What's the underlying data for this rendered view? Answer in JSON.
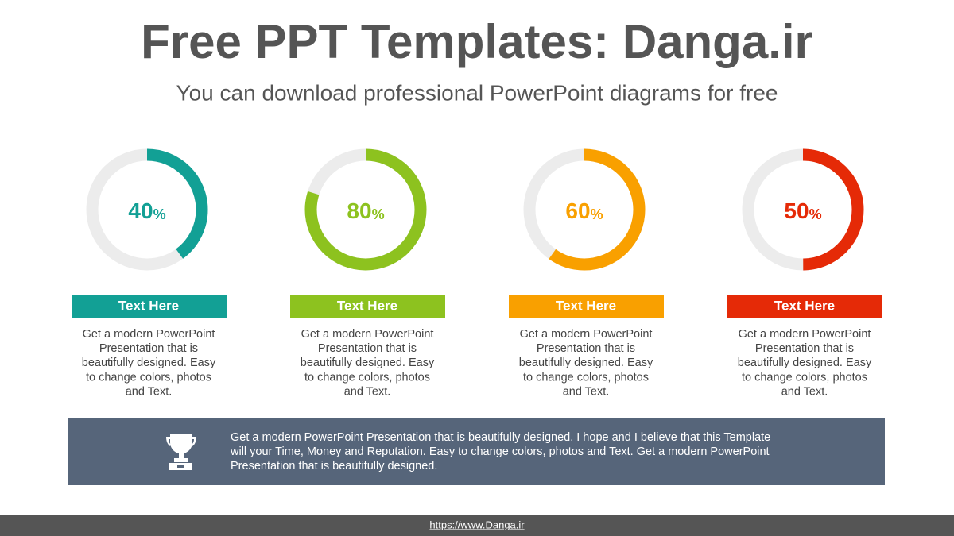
{
  "header": {
    "title": "Free PPT Templates: Danga.ir",
    "subtitle": "You can download professional PowerPoint diagrams for free"
  },
  "cards": [
    {
      "value": 40,
      "unit": "%",
      "color": "#12a095",
      "title": "Text Here",
      "lines": [
        "Get a modern PowerPoint",
        "Presentation that is",
        "beautifully designed. Easy",
        "to change colors, photos",
        "and Text."
      ]
    },
    {
      "value": 80,
      "unit": "%",
      "color": "#8dc21f",
      "title": "Text Here",
      "lines": [
        "Get a modern PowerPoint",
        "Presentation that is",
        "beautifully designed. Easy",
        "to change colors, photos",
        "and Text."
      ]
    },
    {
      "value": 60,
      "unit": "%",
      "color": "#f9a000",
      "title": "Text Here",
      "lines": [
        "Get a modern PowerPoint",
        "Presentation that is",
        "beautifully designed. Easy",
        "to change colors, photos",
        "and Text."
      ]
    },
    {
      "value": 50,
      "unit": "%",
      "color": "#e52a07",
      "title": "Text Here",
      "lines": [
        "Get a modern PowerPoint",
        "Presentation that is",
        "beautifully designed. Easy",
        "to change colors, photos",
        "and Text."
      ]
    }
  ],
  "banner": {
    "lines": [
      "Get a modern PowerPoint  Presentation that is beautifully designed. I hope and I believe that this Template",
      "will your Time, Money and Reputation. Easy to change colors, photos and Text.  Get a modern PowerPoint",
      "Presentation that is beautifully designed."
    ]
  },
  "footer": {
    "link": "https://www.Danga.ir"
  }
}
